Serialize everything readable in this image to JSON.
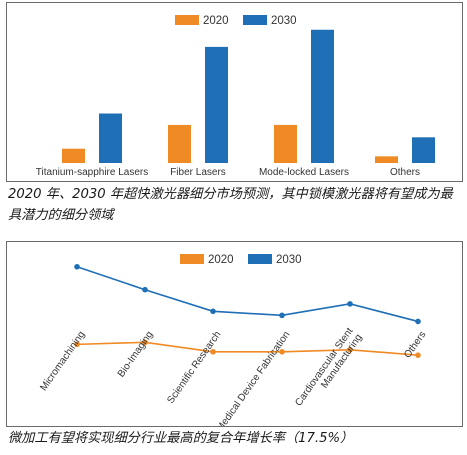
{
  "chart_data": [
    {
      "type": "bar",
      "categories": [
        "Titanium-sapphire Lasers",
        "Fiber Lasers",
        "Mode-locked Lasers",
        "Others"
      ],
      "series": [
        {
          "name": "2020",
          "values": [
            15,
            40,
            40,
            7
          ]
        },
        {
          "name": "2030",
          "values": [
            52,
            122,
            140,
            27
          ]
        }
      ],
      "title": "",
      "xlabel": "",
      "ylabel": "",
      "ylim": [
        0,
        145
      ],
      "grid": false,
      "legend": "top-center"
    },
    {
      "type": "line",
      "categories": [
        "Micromachining",
        "Bio-Imaging",
        "Scientific Research",
        "Medical Device Fabrication",
        "Cardiovascular Stent Manufacturing",
        "Others"
      ],
      "series": [
        {
          "name": "2020",
          "values": [
            35,
            38,
            24,
            24,
            27,
            19
          ]
        },
        {
          "name": "2030",
          "values": [
            150,
            116,
            84,
            78,
            95,
            69
          ]
        }
      ],
      "title": "",
      "xlabel": "",
      "ylabel": "",
      "ylim": [
        0,
        160
      ],
      "grid": false,
      "legend": "top-center"
    }
  ],
  "colors": {
    "series_2020": "#ef8a24",
    "series_2030": "#1f6fb6"
  },
  "captions": {
    "chart1": "2020 年、2030 年超快激光器细分市场预测，其中锁模激光器将有望成为最具潜力的细分领域",
    "chart2": "微加工有望将实现细分行业最高的复合年增长率（17.5%）"
  }
}
